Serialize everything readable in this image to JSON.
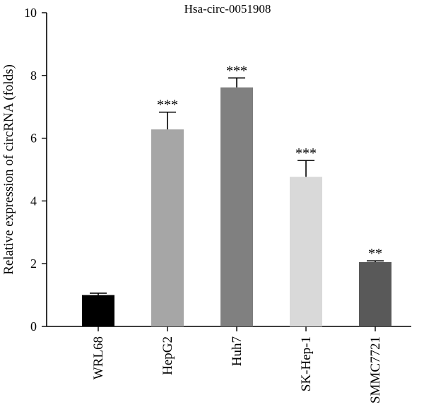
{
  "chart_data": {
    "type": "bar",
    "title": "Hsa-circ-0051908",
    "xlabel": "",
    "ylabel": "Relative expression of circRNA (folds)",
    "ylim": [
      0,
      10
    ],
    "yticks": [
      0,
      2,
      4,
      6,
      8,
      10
    ],
    "categories": [
      "WRL68",
      "HepG2",
      "Huh7",
      "SK-Hep-1",
      "SMMC7721"
    ],
    "values": [
      1.0,
      6.28,
      7.62,
      4.77,
      2.05
    ],
    "errors": [
      0.06,
      0.55,
      0.3,
      0.52,
      0.04
    ],
    "significance": [
      "",
      "***",
      "***",
      "***",
      "**"
    ],
    "colors": [
      "#000000",
      "#a6a6a6",
      "#808080",
      "#d9d9d9",
      "#595959"
    ],
    "grid": false,
    "legend": "none"
  }
}
